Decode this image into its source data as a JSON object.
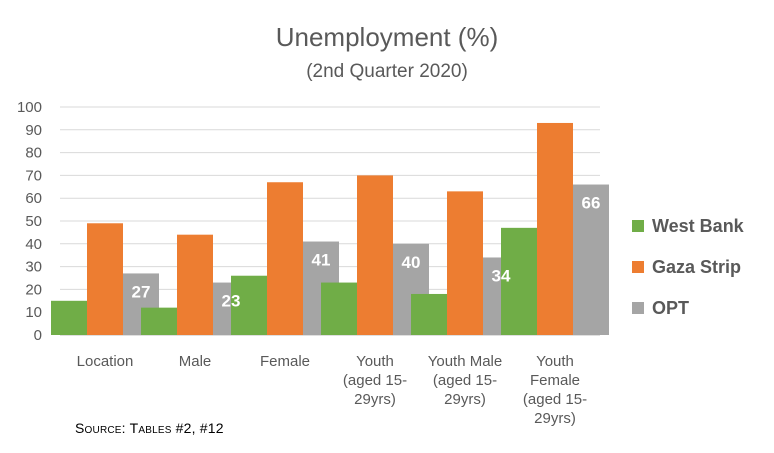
{
  "chart_data": {
    "type": "bar",
    "title": "Unemployment (%)",
    "subtitle": "(2nd Quarter 2020)",
    "categories": [
      [
        "Location"
      ],
      [
        "Male"
      ],
      [
        "Female"
      ],
      [
        "Youth",
        "(aged 15-",
        "29yrs)"
      ],
      [
        "Youth Male",
        "(aged 15-",
        "29yrs)"
      ],
      [
        "Youth",
        "Female",
        "(aged 15-",
        "29yrs)"
      ]
    ],
    "series": [
      {
        "name": "West Bank",
        "color": "#70ad47",
        "values": [
          15,
          12,
          26,
          23,
          18,
          47
        ],
        "show_labels": false
      },
      {
        "name": "Gaza Strip",
        "color": "#ed7d31",
        "values": [
          49,
          44,
          67,
          70,
          63,
          93
        ],
        "show_labels": false
      },
      {
        "name": "OPT",
        "color": "#a5a5a5",
        "values": [
          27,
          23,
          41,
          40,
          34,
          66
        ],
        "show_labels": true
      }
    ],
    "ylim": [
      0,
      100
    ],
    "yticks": [
      0,
      10,
      20,
      30,
      40,
      50,
      60,
      70,
      80,
      90,
      100
    ],
    "grid": true,
    "legend": "right"
  },
  "source": "Source: Tables #2, #12"
}
